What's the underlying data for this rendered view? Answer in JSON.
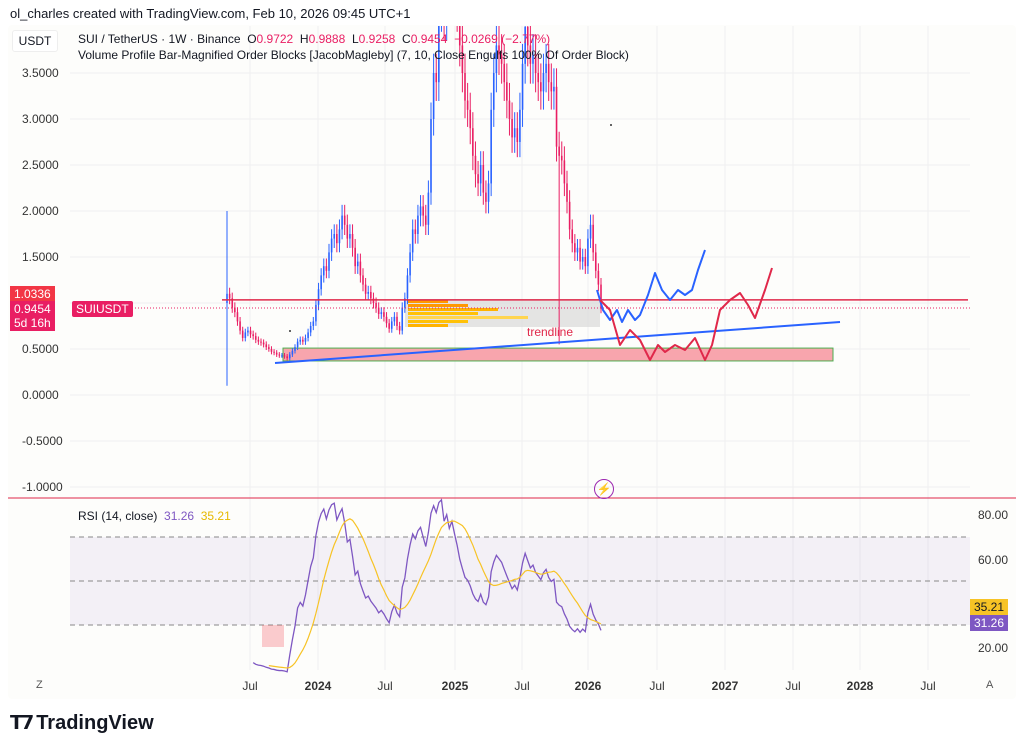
{
  "credit": "ol_charles created with TradingView.com, Feb 10, 2026 09:45 UTC+1",
  "currency": "USDT",
  "legend": {
    "symbol": "SUI / TetherUS · 1W · Binance",
    "o_label": "O",
    "o": "0.9722",
    "h_label": "H",
    "h": "0.9888",
    "l_label": "L",
    "l": "0.9258",
    "c_label": "C",
    "c": "0.9454",
    "change": "−0.0269 (−2.77%)",
    "indicator": "Volume Profile Bar-Magnified Order Blocks [JacobMagleby] (7, 10, Close Engulfs 100% Of Order Block)"
  },
  "price_axis": [
    "3.5000",
    "3.0000",
    "2.5000",
    "2.0000",
    "1.5000",
    "0.5000",
    "0.0000",
    "-0.5000",
    "-1.0000"
  ],
  "tags": {
    "level": "1.0336",
    "last": "0.9454",
    "countdown": "5d 16h",
    "symbol": "SUIUSDT"
  },
  "annotation": "trendline",
  "rsi": {
    "label": "RSI (14, close)",
    "value": "31.26",
    "ma": "35.21",
    "axis": [
      "80.00",
      "60.00",
      "20.00"
    ],
    "color": "#7e57c2",
    "ma_color": "#f7c325"
  },
  "time_axis": [
    "Jul",
    "2024",
    "Jul",
    "2025",
    "Jul",
    "2026",
    "Jul",
    "2027",
    "Jul",
    "2028",
    "Jul"
  ],
  "bottom": {
    "left": "Z",
    "right": "A"
  },
  "brand": "TradingView",
  "colors": {
    "up": "#2962ff",
    "down": "#e91e63",
    "level_line": "#e0284a",
    "projection_up": "#2962ff",
    "projection_down": "#e0284a"
  },
  "chart_data": {
    "type": "candlestick",
    "interval": "1W",
    "start": "2023-05-01",
    "ylim": [
      -1.0,
      4.0
    ],
    "closes": [
      1.1,
      1.05,
      0.95,
      0.9,
      0.8,
      0.7,
      0.62,
      0.68,
      0.7,
      0.66,
      0.64,
      0.6,
      0.58,
      0.57,
      0.55,
      0.52,
      0.5,
      0.47,
      0.46,
      0.44,
      0.43,
      0.43,
      0.42,
      0.4,
      0.44,
      0.48,
      0.52,
      0.58,
      0.6,
      0.58,
      0.62,
      0.68,
      0.75,
      0.8,
      0.98,
      1.15,
      1.3,
      1.4,
      1.35,
      1.55,
      1.7,
      1.75,
      1.65,
      1.8,
      1.95,
      1.85,
      1.7,
      1.75,
      1.6,
      1.4,
      1.45,
      1.3,
      1.2,
      1.1,
      1.12,
      1.05,
      1.0,
      0.95,
      0.88,
      0.9,
      0.85,
      0.78,
      0.72,
      0.8,
      0.85,
      0.75,
      0.7,
      0.95,
      1.05,
      1.3,
      1.55,
      1.8,
      1.75,
      1.95,
      2.05,
      1.95,
      1.85,
      2.2,
      3.0,
      3.5,
      3.4,
      4.2,
      4.5,
      4.1,
      4.6,
      4.3,
      4.8,
      4.5,
      4.2,
      3.8,
      3.5,
      3.2,
      3.1,
      2.9,
      2.6,
      2.4,
      2.3,
      2.5,
      2.2,
      2.1,
      2.3,
      3.1,
      3.5,
      3.8,
      3.7,
      3.6,
      3.4,
      3.2,
      3.0,
      2.8,
      2.9,
      2.75,
      3.1,
      3.6,
      4.0,
      3.8,
      3.6,
      3.7,
      3.5,
      3.4,
      3.3,
      3.5,
      3.6,
      3.4,
      3.3,
      3.35,
      2.7,
      2.6,
      2.55,
      2.3,
      2.1,
      1.8,
      1.65,
      1.55,
      1.6,
      1.45,
      1.5,
      1.4,
      1.7,
      1.85,
      1.55,
      1.35,
      1.2,
      0.9454
    ],
    "horizontal_level": 1.0336,
    "order_block": [
      0.37,
      0.51
    ]
  }
}
